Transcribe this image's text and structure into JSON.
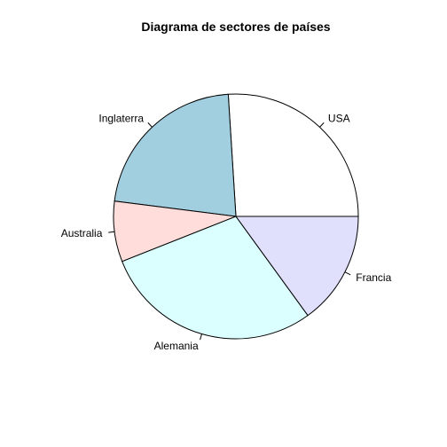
{
  "chart_data": {
    "type": "pie",
    "title": "Diagrama de sectores de países",
    "categories": [
      "USA",
      "Inglaterra",
      "Australia",
      "Alemania",
      "Francia"
    ],
    "values": [
      26,
      22,
      8,
      29,
      15
    ],
    "colors": [
      "#FFFFFF",
      "#A2CFE0",
      "#FFDDDB",
      "#DBFFFF",
      "#E0E0FC"
    ],
    "start_angle_deg": 0,
    "direction": "counterclockwise"
  }
}
